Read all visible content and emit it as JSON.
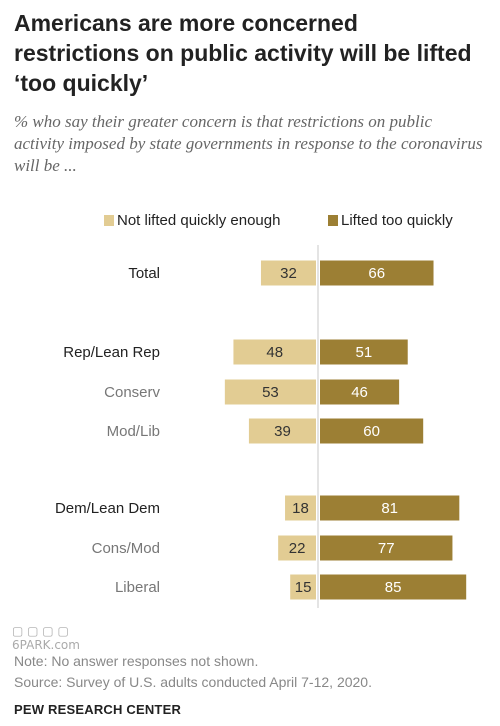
{
  "title": "Americans are more concerned restrictions on public activity will be lifted ‘too quickly’",
  "subtitle": "% who say their greater concern is that restrictions on public activity imposed by state governments in response to the coronavirus will be ...",
  "chart_data": {
    "type": "bar",
    "orientation": "horizontal-diverging",
    "legend_position": "top",
    "categories": [
      "Total",
      "Rep/Lean Rep",
      "Conserv",
      "Mod/Lib",
      "Dem/Lean Dem",
      "Cons/Mod",
      "Liberal"
    ],
    "category_groups": [
      "main",
      "group",
      "sub",
      "sub",
      "group",
      "sub",
      "sub"
    ],
    "series": [
      {
        "name": "Not lifted quickly enough",
        "color": "#e2cc93",
        "values": [
          32,
          48,
          53,
          39,
          18,
          22,
          15
        ]
      },
      {
        "name": "Lifted too quickly",
        "color": "#9c7f34",
        "values": [
          66,
          51,
          46,
          60,
          81,
          77,
          85
        ]
      }
    ]
  },
  "notes": {
    "note": "Note: No answer responses not shown.",
    "source": "Source: Survey of U.S. adults conducted April 7-12, 2020."
  },
  "footer": "PEW RESEARCH CENTER",
  "watermark": "6PARK.com",
  "colors": {
    "label_dark": "#222222",
    "label_light": "#777777",
    "divider": "#c8c8c8"
  }
}
